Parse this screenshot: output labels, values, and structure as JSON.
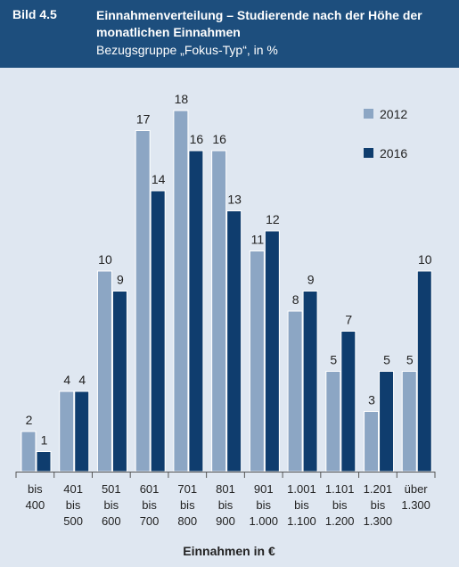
{
  "header": {
    "figure_label": "Bild 4.5",
    "title": "Einnahmenverteilung – Studierende nach der Höhe der monatlichen Einnahmen",
    "subtitle": "Bezugsgruppe „Fokus-Typ“, in %"
  },
  "colors": {
    "header_bg": "#1d4e7d",
    "background": "#dfe7f1",
    "series_2012": "#8ca6c4",
    "series_2016": "#0f3d6e"
  },
  "chart_data": {
    "type": "bar",
    "title": "Einnahmenverteilung – Studierende nach der Höhe der monatlichen Einnahmen",
    "subtitle": "Bezugsgruppe „Fokus-Typ“, in %",
    "xlabel": "Einnahmen in €",
    "ylabel": "",
    "ylim": [
      0,
      18
    ],
    "grid": false,
    "legend": "top-right",
    "categories": [
      [
        "bis",
        "400"
      ],
      [
        "401",
        "bis",
        "500"
      ],
      [
        "501",
        "bis",
        "600"
      ],
      [
        "601",
        "bis",
        "700"
      ],
      [
        "701",
        "bis",
        "800"
      ],
      [
        "801",
        "bis",
        "900"
      ],
      [
        "901",
        "bis",
        "1.000"
      ],
      [
        "1.001",
        "bis",
        "1.100"
      ],
      [
        "1.101",
        "bis",
        "1.200"
      ],
      [
        "1.201",
        "bis",
        "1.300"
      ],
      [
        "über",
        "1.300"
      ]
    ],
    "series": [
      {
        "name": "2012",
        "color": "#8ca6c4",
        "values": [
          2,
          4,
          10,
          17,
          18,
          16,
          11,
          8,
          5,
          3,
          5
        ]
      },
      {
        "name": "2016",
        "color": "#0f3d6e",
        "values": [
          1,
          4,
          9,
          14,
          16,
          13,
          12,
          9,
          7,
          5,
          10
        ]
      }
    ]
  }
}
